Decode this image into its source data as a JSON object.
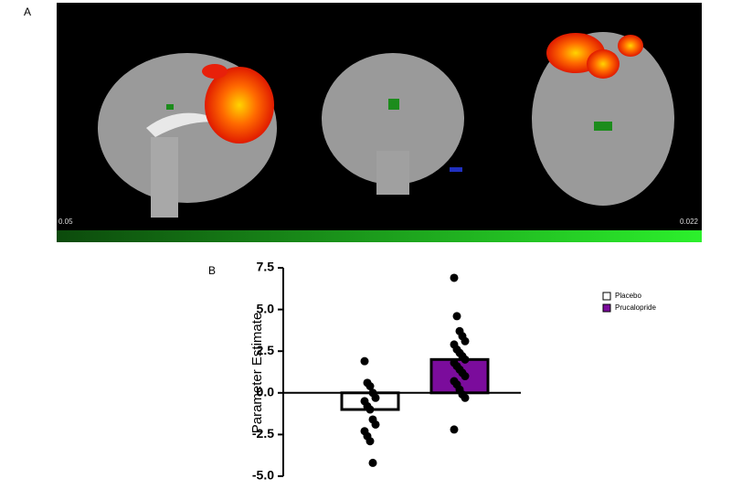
{
  "panel_a": {
    "label": "A",
    "colorbar_min": "0.05",
    "colorbar_max": "0.022"
  },
  "chart_data": {
    "type": "bar",
    "panel_label": "B",
    "ylabel": "Parameter Estimate",
    "ylim": [
      -5,
      7.5
    ],
    "yticks": [
      7.5,
      {
        "value": 5,
        "label": "5.0"
      },
      2.5,
      {
        "value": 0,
        "label": "0.0"
      },
      -2.5,
      {
        "value": -5,
        "label": "-5.0"
      }
    ],
    "series": [
      {
        "name": "Placebo",
        "color": "#ffffff",
        "values": [
          -1.0
        ],
        "points": [
          1.9,
          0.6,
          0.4,
          0.0,
          -0.3,
          -0.5,
          -0.8,
          -1.0,
          -1.6,
          -1.9,
          -2.3,
          -2.6,
          -2.9,
          -4.2
        ]
      },
      {
        "name": "Prucalopride",
        "color": "#7b0c9c",
        "values": [
          2.0
        ],
        "points": [
          6.9,
          4.6,
          3.7,
          3.4,
          3.1,
          2.9,
          2.6,
          2.4,
          2.2,
          2.0,
          1.8,
          1.6,
          1.4,
          1.2,
          1.0,
          0.7,
          0.5,
          0.2,
          -0.1,
          -0.3,
          -2.2
        ]
      }
    ]
  }
}
